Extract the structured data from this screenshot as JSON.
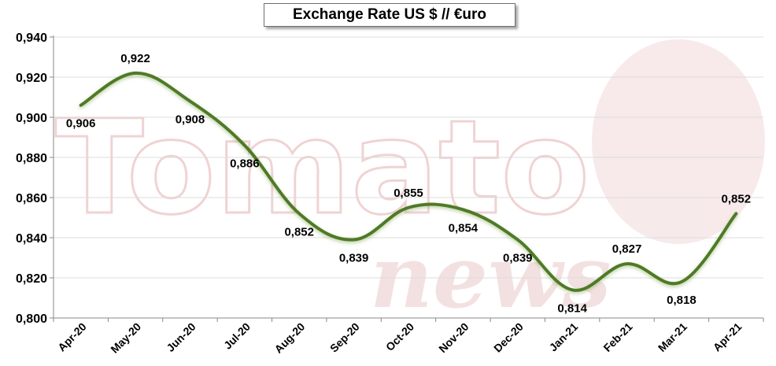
{
  "chart_data": {
    "type": "line",
    "title": "Exchange Rate US $ // €uro",
    "categories": [
      "Apr-20",
      "May-20",
      "Jun-20",
      "Jul-20",
      "Aug-20",
      "Sep-20",
      "Oct-20",
      "Nov-20",
      "Dec-20",
      "Jan-21",
      "Feb-21",
      "Mar-21",
      "Apr-21"
    ],
    "values": [
      0.906,
      0.922,
      0.908,
      0.886,
      0.852,
      0.839,
      0.855,
      0.854,
      0.839,
      0.814,
      0.827,
      0.818,
      0.852
    ],
    "value_labels": [
      "0,906",
      "0,922",
      "0,908",
      "0,886",
      "0,852",
      "0,839",
      "0,855",
      "0,854",
      "0,839",
      "0,814",
      "0,827",
      "0,818",
      "0,852"
    ],
    "ylim": [
      0.8,
      0.94
    ],
    "yticks": [
      0.8,
      0.82,
      0.84,
      0.86,
      0.88,
      0.9,
      0.92,
      0.94
    ],
    "ytick_labels": [
      "0,800",
      "0,820",
      "0,840",
      "0,860",
      "0,880",
      "0,900",
      "0,920",
      "0,940"
    ],
    "xlabel": "",
    "ylabel": "",
    "grid": true,
    "line_color": "#4f7a28",
    "smooth": true
  },
  "watermark": {
    "text_main": "Tomato",
    "text_sub": "news",
    "color": "#e9c4c4"
  }
}
